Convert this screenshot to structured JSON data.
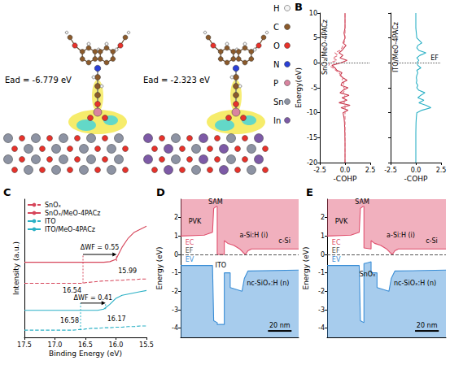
{
  "chart_data": [
    {
      "type": "line",
      "panel": "B",
      "annotation": "SnO₂/MeO-4PACz",
      "xlabel": "-COHP",
      "ylabel": "Energy(eV)",
      "xlim": [
        -2.5,
        2.5
      ],
      "xticks": [
        -2.5,
        {
          "value": 0,
          "label": "0.0"
        },
        2.5
      ],
      "ylim": [
        -20,
        10
      ],
      "yticks": [
        -20,
        -15,
        -10,
        -5,
        0,
        5,
        10
      ],
      "fermi_level": 0,
      "series": [
        {
          "color": "#c8384d",
          "line_style": "solid",
          "x": [
            0,
            0,
            0,
            -0.02,
            -0.05,
            -0.1,
            -0.2,
            0.3,
            -0.4,
            0.5,
            -0.6,
            0.2,
            -0.3,
            0.4,
            -0.5,
            -0.2,
            0.3,
            -0.4,
            -0.3,
            0.2,
            -0.2,
            -0.5,
            -0.3,
            -0.8,
            -1.0,
            -1.3,
            -0.4,
            0.2,
            -0.5,
            -0.2,
            -0.6,
            -0.3,
            -0.1,
            0.1,
            -0.2,
            0,
            -0.1,
            0,
            0,
            0,
            0
          ],
          "values": [
            -20,
            -18,
            -16,
            -14,
            -12,
            -11,
            -10,
            -9.5,
            -9,
            -8.5,
            -8,
            -7.5,
            -7,
            -6.5,
            -6,
            -5.5,
            -5,
            -4.5,
            -4,
            -3.5,
            -3,
            -2.5,
            -2,
            -1.5,
            -1,
            -0.5,
            0,
            0.5,
            1,
            1.5,
            2,
            2.5,
            3,
            3.5,
            4,
            5,
            6,
            7,
            8,
            9,
            10
          ]
        },
        {
          "color": "#e0707f",
          "line_style": "dashed",
          "x": [
            0,
            0,
            0,
            0,
            0,
            0,
            0,
            0,
            0,
            0,
            -0.1,
            0,
            -0.1,
            0,
            -0.2,
            0,
            -0.1,
            -0.2,
            -0.1,
            -0.3,
            -0.2,
            -0.4,
            -0.6,
            -0.9,
            -1.2,
            -1.6,
            -1.5,
            -0.8,
            -1.2,
            -0.7,
            -1.0,
            -0.5,
            -0.3,
            -0.2,
            -0.1,
            0,
            0,
            0,
            0,
            0,
            0
          ],
          "values": [
            -20,
            -18,
            -16,
            -14,
            -12,
            -11,
            -10,
            -9.5,
            -9,
            -8.5,
            -8,
            -7.5,
            -7,
            -6.5,
            -6,
            -5.5,
            -5,
            -4.5,
            -4,
            -3.5,
            -3,
            -2.5,
            -2,
            -1.5,
            -1,
            -0.5,
            0,
            0.5,
            1,
            1.5,
            2,
            2.5,
            3,
            3.5,
            4,
            5,
            6,
            7,
            8,
            9,
            10
          ]
        }
      ]
    },
    {
      "type": "line",
      "annotation": "ITO/MeO-4PACz",
      "xlabel": "-COHP",
      "fermi_label": "EF",
      "xlim": [
        -2.5,
        2.5
      ],
      "xticks": [
        -2.5,
        {
          "value": 0,
          "label": "0.0"
        },
        2.5
      ],
      "ylim": [
        -20,
        10
      ],
      "yticks": [
        -20,
        -15,
        -10,
        -5,
        0,
        5,
        10
      ],
      "tick_labels": "x",
      "fermi_level": 0,
      "series": [
        {
          "color": "#2ab0c5",
          "line_style": "solid",
          "x": [
            0,
            0,
            0,
            0,
            0.02,
            0.05,
            0.1,
            0.6,
            1.5,
            1.0,
            0.3,
            0.8,
            0.2,
            0.5,
            0.9,
            0.3,
            0.1,
            0.2,
            0.05,
            0.1,
            0.05,
            0.1,
            0.2,
            0.1,
            0.5,
            0.2,
            0.1,
            0.3,
            0.1,
            0.4,
            1.0,
            0.3,
            0.1,
            0.2,
            0.6,
            0.1,
            0.05,
            0,
            0,
            0,
            0
          ],
          "values": [
            -20,
            -18,
            -16,
            -14,
            -12,
            -11,
            -10,
            -9.5,
            -9,
            -8.5,
            -8,
            -7.5,
            -7,
            -6.5,
            -6,
            -5.5,
            -5,
            -4.5,
            -4,
            -3.5,
            -3,
            -2.5,
            -2,
            -1.5,
            -1,
            -0.5,
            0,
            0.5,
            1,
            1.5,
            2,
            2.5,
            3,
            3.5,
            4,
            5,
            6,
            7,
            8,
            9,
            10
          ]
        }
      ]
    },
    {
      "type": "line",
      "panel": "C",
      "xlabel": "Binding Energy (eV)",
      "ylabel": "Intensity (a.u.)",
      "xlim": [
        17.5,
        15.5
      ],
      "xticks": [
        17.5,
        {
          "value": 17,
          "label": "17.0"
        },
        16.5,
        {
          "value": 16,
          "label": "16.0"
        },
        15.5
      ],
      "ylim": [
        0,
        2.3
      ],
      "tick_labels": "x",
      "legend": "upper left",
      "x": [
        17.5,
        17.2,
        16.9,
        16.7,
        16.6,
        16.54,
        16.5,
        16.4,
        16.3,
        16.2,
        16.1,
        16.0,
        15.9,
        15.8,
        15.7,
        15.6,
        15.5
      ],
      "series": [
        {
          "name": "SnOₓ",
          "color": "#d6455a",
          "line_style": "dashed",
          "values": [
            0.9,
            0.9,
            0.9,
            0.9,
            0.9,
            0.9,
            0.91,
            0.92,
            0.93,
            0.94,
            0.94,
            0.95,
            0.95,
            0.96,
            0.96,
            0.97,
            0.97
          ]
        },
        {
          "name": "SnOₓ/MeO-4PACz",
          "color": "#d6455a",
          "line_style": "solid",
          "values": [
            1.25,
            1.25,
            1.25,
            1.25,
            1.25,
            1.25,
            1.25,
            1.25,
            1.25,
            1.25,
            1.26,
            1.3,
            1.5,
            1.65,
            1.75,
            1.8,
            1.85
          ]
        },
        {
          "name": "ITO",
          "color": "#2ab0c5",
          "line_style": "dashed",
          "values": [
            0.12,
            0.12,
            0.12,
            0.12,
            0.13,
            0.13,
            0.14,
            0.15,
            0.15,
            0.16,
            0.16,
            0.17,
            0.17,
            0.18,
            0.18,
            0.19,
            0.19
          ]
        },
        {
          "name": "ITO/MeO-4PACz",
          "color": "#2ab0c5",
          "line_style": "solid",
          "values": [
            0.45,
            0.45,
            0.45,
            0.45,
            0.45,
            0.45,
            0.45,
            0.45,
            0.45,
            0.47,
            0.55,
            0.65,
            0.7,
            0.72,
            0.74,
            0.76,
            0.78
          ]
        }
      ],
      "delta_wf": [
        {
          "from": 16.54,
          "to": 15.99,
          "label": "ΔWF = 0.55"
        },
        {
          "from": 16.58,
          "to": 16.17,
          "label": "ΔWF = 0.41"
        }
      ]
    },
    {
      "type": "area",
      "panel": "D",
      "ylabel": "Energy (eV)",
      "xlim": [
        0,
        100
      ],
      "ylim": [
        -4.5,
        3
      ],
      "yticks": [
        -4,
        -3,
        -2,
        -1,
        0,
        1,
        2
      ],
      "tick_labels": "y",
      "fermi_level": 0,
      "series": [
        {
          "color": "#e0506e",
          "x": [
            0,
            20,
            27,
            28,
            30,
            31,
            31,
            37,
            37,
            40,
            45,
            50,
            53,
            55,
            57,
            60,
            100
          ],
          "values": [
            1.0,
            1.05,
            1.2,
            2.5,
            2.6,
            2.6,
            0,
            0,
            0.75,
            0.6,
            0.5,
            0.3,
            0.1,
            0,
            0.2,
            0.3,
            0.3
          ]
        },
        {
          "color": "#3b8ed6",
          "x": [
            0,
            27,
            28,
            31,
            31,
            37,
            37,
            42,
            42,
            52,
            54,
            57,
            100
          ],
          "values": [
            -0.6,
            -0.6,
            -3.6,
            -3.7,
            -3.8,
            -3.8,
            -1.0,
            -1.0,
            -1.8,
            -2.0,
            -1.3,
            -0.9,
            -0.85
          ]
        }
      ],
      "labels": [
        "SAM",
        "PVK",
        "EC",
        "EF",
        "a-Si:H (i)",
        "c-Si",
        "ITO",
        "EV",
        "nc-SiOₓ:H (n)"
      ],
      "scale_bar": {
        "length": 20,
        "label": "20 nm"
      }
    },
    {
      "type": "area",
      "panel": "E",
      "ylabel": "Energy (eV)",
      "xlim": [
        0,
        100
      ],
      "ylim": [
        -4.5,
        3
      ],
      "yticks": [
        -4,
        -3,
        -2,
        -1,
        0,
        1,
        2
      ],
      "tick_labels": "y",
      "fermi_level": 0,
      "series": [
        {
          "color": "#e0506e",
          "x": [
            0,
            20,
            27,
            28,
            30,
            31,
            31,
            37,
            37,
            40,
            45,
            50,
            53,
            55,
            57,
            60,
            100
          ],
          "values": [
            1.0,
            1.05,
            1.2,
            2.5,
            2.6,
            2.6,
            0.35,
            0.3,
            0.75,
            0.6,
            0.5,
            0.3,
            0.1,
            0,
            0.2,
            0.3,
            0.3
          ]
        },
        {
          "color": "#3b8ed6",
          "x": [
            0,
            27,
            28,
            31,
            31,
            34,
            37,
            37,
            42,
            42,
            52,
            54,
            57,
            100
          ],
          "values": [
            -0.6,
            -0.6,
            -3.6,
            -3.7,
            -0.5,
            -0.45,
            -0.4,
            -1.0,
            -1.0,
            -1.8,
            -2.0,
            -1.3,
            -0.9,
            -0.85
          ]
        }
      ],
      "labels": [
        "SAM",
        "PVK",
        "EC",
        "EF",
        "a-Si:H (i)",
        "c-Si",
        "SnOₓ",
        "EV",
        "nc-SiOₓ:H (n)"
      ],
      "scale_bar": {
        "length": 20,
        "label": "20 nm"
      }
    }
  ],
  "structures": {
    "energies": [
      "Ead = -6.779 eV",
      "Ead = -2.323 eV"
    ],
    "atoms": [
      {
        "symbol": "H",
        "color": "#f5f5f5"
      },
      {
        "symbol": "C",
        "color": "#8b5a2b"
      },
      {
        "symbol": "O",
        "color": "#e8322b"
      },
      {
        "symbol": "N",
        "color": "#2a3fd6"
      },
      {
        "symbol": "P",
        "color": "#d9839f"
      },
      {
        "symbol": "Sn",
        "color": "#8d93a3"
      },
      {
        "symbol": "In",
        "color": "#7d5aa6"
      }
    ]
  }
}
